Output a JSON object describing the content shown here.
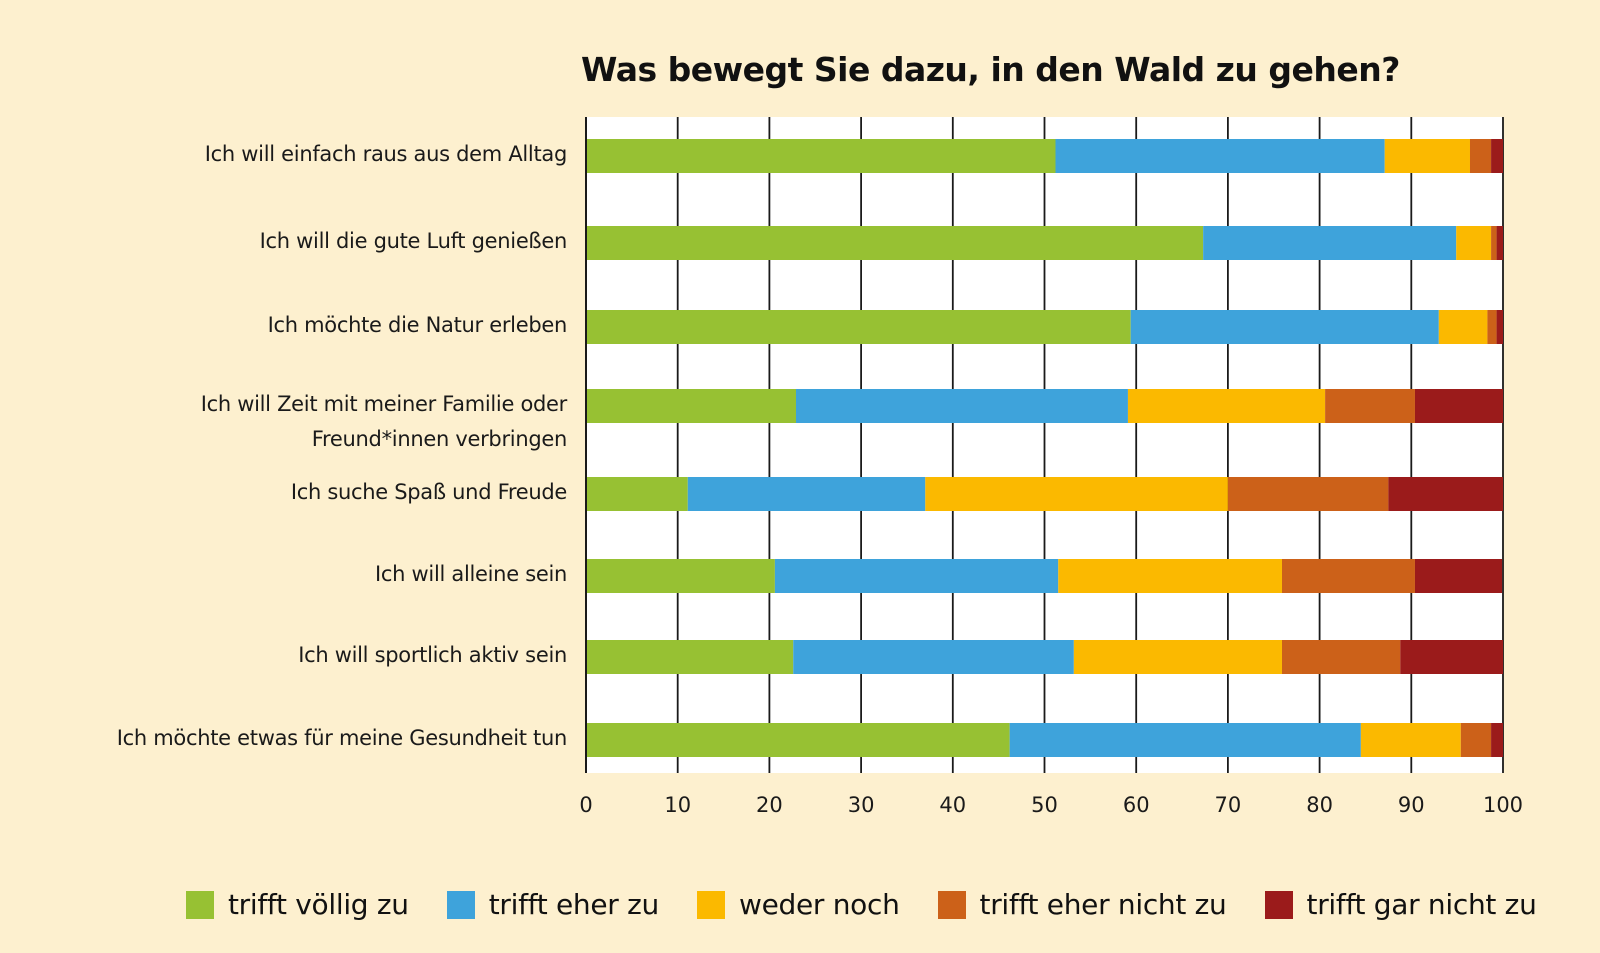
{
  "chart_data": {
    "type": "bar",
    "orientation": "horizontal",
    "stacked": true,
    "title": "Was bewegt Sie dazu, in den Wald zu gehen?",
    "xlabel": "",
    "ylabel": "",
    "xlim": [
      0,
      100
    ],
    "xticks": [
      "0",
      "10",
      "20",
      "30",
      "40",
      "50",
      "60",
      "70",
      "80",
      "90",
      "100"
    ],
    "grid": true,
    "legend_position": "bottom",
    "categories": [
      [
        "Ich will einfach raus aus dem Alltag"
      ],
      [
        "Ich will die gute Luft genießen"
      ],
      [
        "Ich möchte die Natur erleben"
      ],
      [
        "Ich will Zeit mit meiner Familie oder",
        "Freund*innen verbringen"
      ],
      [
        "Ich suche Spaß und Freude"
      ],
      [
        "Ich will alleine sein"
      ],
      [
        "Ich will sportlich aktiv sein"
      ],
      [
        "Ich möchte etwas für meine Gesundheit tun"
      ]
    ],
    "series": [
      {
        "name": "trifft völlig zu",
        "color": "#97c133",
        "values": [
          51.2,
          67.3,
          59.4,
          22.9,
          11.1,
          20.6,
          22.6,
          46.2
        ]
      },
      {
        "name": "trifft eher zu",
        "color": "#3ea3db",
        "values": [
          35.9,
          27.6,
          33.6,
          36.2,
          25.9,
          30.9,
          30.6,
          38.3
        ]
      },
      {
        "name": "weder noch",
        "color": "#fbb900",
        "values": [
          9.3,
          3.8,
          5.3,
          21.5,
          33.0,
          24.4,
          22.7,
          10.9
        ]
      },
      {
        "name": "trifft eher nicht zu",
        "color": "#cc6119",
        "values": [
          2.3,
          0.6,
          1.0,
          9.8,
          17.5,
          14.5,
          12.9,
          3.3
        ]
      },
      {
        "name": "trifft gar nicht zu",
        "color": "#9b1b1b",
        "values": [
          1.3,
          0.7,
          0.7,
          9.6,
          12.5,
          9.5,
          11.2,
          1.3
        ]
      }
    ]
  }
}
